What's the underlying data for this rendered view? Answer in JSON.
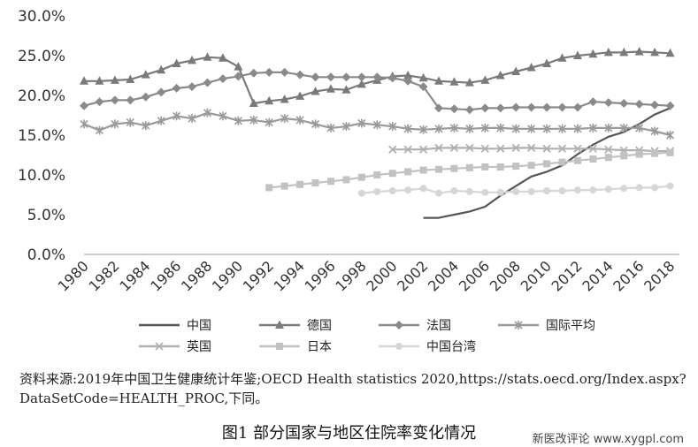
{
  "chart_data": {
    "type": "line",
    "y_tick_labels": [
      "0.0%",
      "5.0%",
      "10.0%",
      "15.0%",
      "20.0%",
      "25.0%",
      "30.0%"
    ],
    "ylim": [
      0,
      30
    ],
    "x_tick_labels": [
      "1980",
      "1982",
      "1984",
      "1986",
      "1988",
      "1990",
      "1992",
      "1994",
      "1996",
      "1998",
      "2000",
      "2002",
      "2004",
      "2006",
      "2008",
      "2010",
      "2012",
      "2014",
      "2016",
      "2018"
    ],
    "grid": false,
    "legend_position": "bottom",
    "series": [
      {
        "name": "中国",
        "color": "#555555",
        "marker": "none",
        "x": [
          2002,
          2003,
          2004,
          2005,
          2006,
          2007,
          2008,
          2009,
          2010,
          2011,
          2012,
          2013,
          2014,
          2015,
          2016,
          2017,
          2018
        ],
        "y": [
          4.6,
          4.6,
          5.0,
          5.4,
          6.0,
          7.4,
          8.6,
          9.8,
          10.4,
          11.2,
          12.6,
          13.8,
          14.8,
          15.4,
          16.4,
          17.6,
          18.4
        ]
      },
      {
        "name": "德国",
        "color": "#7a7a7a",
        "marker": "triangle",
        "x": [
          1980,
          1981,
          1982,
          1983,
          1984,
          1985,
          1986,
          1987,
          1988,
          1989,
          1990,
          1991,
          1992,
          1993,
          1994,
          1995,
          1996,
          1997,
          1998,
          1999,
          2000,
          2001,
          2002,
          2003,
          2004,
          2005,
          2006,
          2007,
          2008,
          2009,
          2010,
          2011,
          2012,
          2013,
          2014,
          2015,
          2016,
          2017,
          2018
        ],
        "y": [
          21.8,
          21.8,
          21.9,
          22.0,
          22.6,
          23.2,
          24.0,
          24.4,
          24.8,
          24.7,
          23.6,
          19.0,
          19.3,
          19.5,
          19.9,
          20.5,
          20.8,
          20.7,
          21.4,
          21.9,
          22.4,
          22.5,
          22.2,
          21.8,
          21.7,
          21.6,
          21.9,
          22.5,
          23.0,
          23.5,
          24.0,
          24.7,
          25.0,
          25.2,
          25.4,
          25.4,
          25.5,
          25.4,
          25.3
        ]
      },
      {
        "name": "法国",
        "color": "#8a8a8a",
        "marker": "diamond",
        "x": [
          1980,
          1981,
          1982,
          1983,
          1984,
          1985,
          1986,
          1987,
          1988,
          1989,
          1990,
          1991,
          1992,
          1993,
          1994,
          1995,
          1996,
          1997,
          1998,
          1999,
          2000,
          2001,
          2002,
          2003,
          2004,
          2005,
          2006,
          2007,
          2008,
          2009,
          2010,
          2011,
          2012,
          2013,
          2014,
          2015,
          2016,
          2017,
          2018
        ],
        "y": [
          18.7,
          19.2,
          19.4,
          19.4,
          19.8,
          20.4,
          20.9,
          21.1,
          21.6,
          22.1,
          22.4,
          22.8,
          22.9,
          22.9,
          22.6,
          22.3,
          22.3,
          22.3,
          22.3,
          22.3,
          22.2,
          21.8,
          21.1,
          18.4,
          18.3,
          18.2,
          18.4,
          18.4,
          18.5,
          18.5,
          18.5,
          18.5,
          18.5,
          19.2,
          19.1,
          19.0,
          18.9,
          18.8,
          18.7
        ]
      },
      {
        "name": "国际平均",
        "color": "#9a9a9a",
        "marker": "star",
        "x": [
          1980,
          1981,
          1982,
          1983,
          1984,
          1985,
          1986,
          1987,
          1988,
          1989,
          1990,
          1991,
          1992,
          1993,
          1994,
          1995,
          1996,
          1997,
          1998,
          1999,
          2000,
          2001,
          2002,
          2003,
          2004,
          2005,
          2006,
          2007,
          2008,
          2009,
          2010,
          2011,
          2012,
          2013,
          2014,
          2015,
          2016,
          2017,
          2018
        ],
        "y": [
          16.4,
          15.6,
          16.4,
          16.6,
          16.2,
          16.8,
          17.4,
          17.1,
          17.8,
          17.4,
          16.8,
          16.9,
          16.6,
          17.1,
          16.9,
          16.4,
          15.9,
          16.1,
          16.5,
          16.3,
          16.1,
          15.8,
          15.7,
          15.8,
          15.9,
          15.8,
          15.9,
          15.9,
          15.8,
          15.8,
          15.8,
          15.8,
          15.8,
          15.9,
          15.9,
          15.9,
          15.9,
          15.5,
          15.0
        ]
      },
      {
        "name": "英国",
        "color": "#b0b0b0",
        "marker": "x",
        "x": [
          2000,
          2001,
          2002,
          2003,
          2004,
          2005,
          2006,
          2007,
          2008,
          2009,
          2010,
          2011,
          2012,
          2013,
          2014,
          2015,
          2016,
          2017,
          2018
        ],
        "y": [
          13.2,
          13.2,
          13.2,
          13.4,
          13.4,
          13.4,
          13.3,
          13.3,
          13.4,
          13.4,
          13.3,
          13.3,
          13.3,
          13.3,
          13.2,
          13.1,
          13.1,
          13.0,
          13.0
        ]
      },
      {
        "name": "日本",
        "color": "#c2c2c2",
        "marker": "square",
        "x": [
          1992,
          1993,
          1994,
          1995,
          1996,
          1997,
          1998,
          1999,
          2000,
          2001,
          2002,
          2003,
          2004,
          2005,
          2006,
          2007,
          2008,
          2009,
          2010,
          2011,
          2012,
          2013,
          2014,
          2015,
          2016,
          2017,
          2018
        ],
        "y": [
          8.4,
          8.6,
          8.8,
          9.0,
          9.2,
          9.4,
          9.7,
          10.0,
          10.2,
          10.4,
          10.6,
          10.7,
          10.8,
          10.9,
          11.0,
          11.0,
          11.1,
          11.2,
          11.4,
          11.6,
          11.8,
          12.0,
          12.2,
          12.4,
          12.6,
          12.7,
          12.8
        ]
      },
      {
        "name": "中国台湾",
        "color": "#d6d6d6",
        "marker": "circle",
        "x": [
          1998,
          1999,
          2000,
          2001,
          2002,
          2003,
          2004,
          2005,
          2006,
          2007,
          2008,
          2009,
          2010,
          2011,
          2012,
          2013,
          2014,
          2015,
          2016,
          2017,
          2018
        ],
        "y": [
          7.7,
          7.9,
          8.0,
          8.1,
          8.3,
          7.7,
          8.0,
          7.9,
          7.8,
          7.8,
          7.9,
          7.9,
          8.0,
          8.0,
          8.1,
          8.1,
          8.2,
          8.3,
          8.4,
          8.4,
          8.6
        ]
      }
    ]
  },
  "source_note": "资料来源:2019年中国卫生健康统计年鉴;OECD Health statistics 2020,https://stats.oecd.org/Index.aspx?DataSetCode=HEALTH_PROC,下同。",
  "caption": "图1 部分国家与地区住院率变化情况",
  "watermark": "新医改评论 www.xygpl.com"
}
